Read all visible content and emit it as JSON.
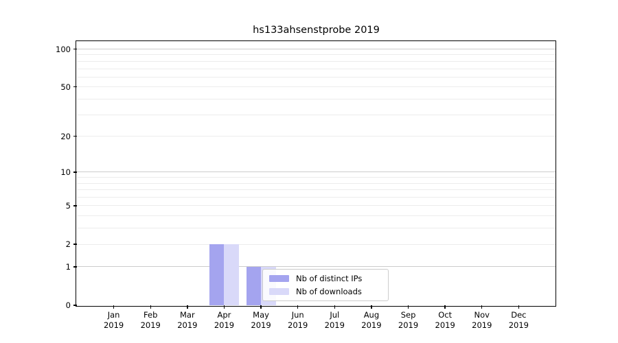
{
  "figure": {
    "background": "#ffffff"
  },
  "chart_data": {
    "type": "bar",
    "title": "hs133ahsenstprobe 2019",
    "xlabel": "",
    "ylabel": "",
    "categories": [
      "Jan 2019",
      "Feb 2019",
      "Mar 2019",
      "Apr 2019",
      "May 2019",
      "Jun 2019",
      "Jul 2019",
      "Aug 2019",
      "Sep 2019",
      "Oct 2019",
      "Nov 2019",
      "Dec 2019"
    ],
    "series": [
      {
        "name": "Nb of distinct IPs",
        "color": "#a4a4ef",
        "values": [
          0,
          0,
          0,
          2,
          1,
          0,
          0,
          0,
          0,
          0,
          0,
          0
        ]
      },
      {
        "name": "Nb of downloads",
        "color": "#d9d9f9",
        "values": [
          0,
          0,
          0,
          2,
          1,
          0,
          0,
          0,
          0,
          0,
          0,
          0
        ]
      }
    ],
    "yscale": "log1p",
    "ylim": [
      0,
      114
    ],
    "yticks": [
      0,
      1,
      2,
      5,
      10,
      20,
      50,
      100
    ],
    "grid": {
      "major_values": [
        1,
        10,
        100
      ],
      "minor_values": [
        2,
        3,
        4,
        5,
        6,
        7,
        8,
        9,
        20,
        30,
        40,
        50,
        60,
        70,
        80,
        90
      ],
      "major_color": "#cccccc",
      "minor_color": "#ececec"
    },
    "legend": {
      "position": "lower-center",
      "frame": true
    }
  }
}
